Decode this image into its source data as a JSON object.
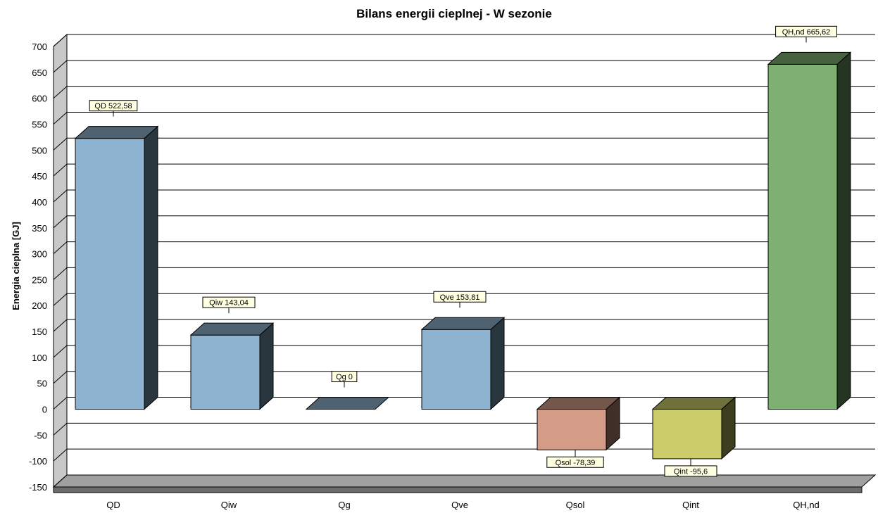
{
  "chart_data": {
    "type": "bar",
    "title": "Bilans energii cieplnej - W sezonie",
    "ylabel": "Energia cieplna [GJ]",
    "xlabel": "",
    "ylim": [
      -150,
      700
    ],
    "yticks": [
      -150,
      -100,
      -50,
      0,
      50,
      100,
      150,
      200,
      250,
      300,
      350,
      400,
      450,
      500,
      550,
      600,
      650,
      700
    ],
    "grid": true,
    "three_d": true,
    "categories": [
      "QD",
      "Qiw",
      "Qg",
      "Qve",
      "Qsol",
      "Qint",
      "QH,nd"
    ],
    "values": [
      522.58,
      143.04,
      0,
      153.81,
      -78.39,
      -95.6,
      665.62
    ],
    "data_labels": [
      "QD 522,58",
      "Qiw 143,04",
      "Qg 0",
      "Qve 153,81",
      "Qsol -78,39",
      "Qint -95,6",
      "QH,nd 665,62"
    ],
    "colors": [
      "#8db3d0",
      "#8db3d0",
      "#8db3d0",
      "#8db3d0",
      "#d49c86",
      "#cccc6a",
      "#7db071"
    ]
  }
}
